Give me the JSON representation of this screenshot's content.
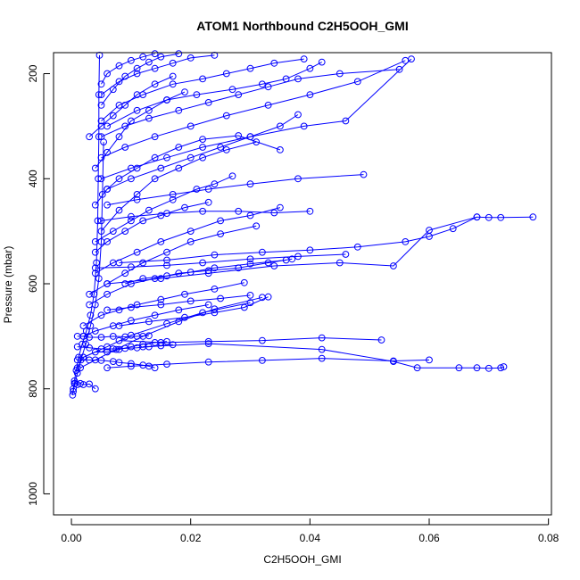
{
  "chart_data": {
    "type": "line",
    "title": "ATOM1 Northbound C2H5OOH_GMI",
    "xlabel": "C2H5OOH_GMI",
    "ylabel": "Pressure (mbar)",
    "xlim": [
      -0.003,
      0.0805
    ],
    "ylim": [
      1040,
      160
    ],
    "y_reversed": true,
    "x_ticks": [
      0.0,
      0.02,
      0.04,
      0.06,
      0.08
    ],
    "x_tick_labels": [
      "0.00",
      "0.02",
      "0.04",
      "0.06",
      "0.08"
    ],
    "y_ticks": [
      200,
      400,
      600,
      800,
      1000
    ],
    "y_tick_labels": [
      "200",
      "400",
      "600",
      "800",
      "1000"
    ],
    "grid": false,
    "legend": "none",
    "marker": "open-circle",
    "series_color": "#0000ff",
    "series": [
      {
        "x": [
          0.0002,
          0.0003,
          0.0005,
          0.0008,
          0.0012,
          0.0018,
          0.0025,
          0.0032,
          0.0038,
          0.0042,
          0.0044,
          0.0045,
          0.0046,
          0.0046,
          0.0047
        ],
        "y": [
          812,
          800,
          785,
          765,
          740,
          715,
          690,
          660,
          620,
          560,
          480,
          400,
          320,
          240,
          165
        ]
      },
      {
        "x": [
          0.0003,
          0.0006,
          0.001,
          0.0016,
          0.0024,
          0.0032,
          0.004,
          0.0046,
          0.005,
          0.0052,
          0.0054
        ],
        "y": [
          805,
          790,
          770,
          745,
          715,
          680,
          640,
          590,
          520,
          430,
          330
        ]
      },
      {
        "x": [
          0.0015,
          0.004,
          0.0075,
          0.012,
          0.018,
          0.024,
          0.032
        ],
        "y": [
          760,
          745,
          725,
          700,
          672,
          648,
          626
        ]
      },
      {
        "x": [
          0.002,
          0.006,
          0.01,
          0.016,
          0.022,
          0.03
        ],
        "y": [
          740,
          720,
          698,
          676,
          655,
          636
        ]
      },
      {
        "x": [
          0.006,
          0.01,
          0.016,
          0.023,
          0.032,
          0.042,
          0.054,
          0.06
        ],
        "y": [
          760,
          757,
          753,
          749,
          746,
          742,
          747,
          745
        ]
      },
      {
        "x": [
          0.012,
          0.023,
          0.042,
          0.054,
          0.058,
          0.065,
          0.068,
          0.07,
          0.072,
          0.0725
        ],
        "y": [
          720,
          714,
          725,
          748,
          760,
          760,
          760,
          761,
          760,
          758
        ]
      },
      {
        "x": [
          0.008,
          0.015,
          0.023,
          0.032,
          0.042,
          0.052
        ],
        "y": [
          708,
          712,
          710,
          708,
          703,
          707
        ]
      },
      {
        "x": [
          0.004,
          0.01,
          0.016,
          0.022,
          0.03,
          0.038,
          0.046
        ],
        "y": [
          570,
          568,
          565,
          560,
          553,
          548,
          544
        ]
      },
      {
        "x": [
          0.006,
          0.015,
          0.023,
          0.034,
          0.045,
          0.054,
          0.06,
          0.068,
          0.07,
          0.072,
          0.0774
        ],
        "y": [
          600,
          590,
          580,
          566,
          560,
          566,
          498,
          473,
          474,
          474,
          473
        ]
      },
      {
        "x": [
          0.008,
          0.016,
          0.024,
          0.032,
          0.04,
          0.048,
          0.056,
          0.06,
          0.064,
          0.068
        ],
        "y": [
          560,
          555,
          545,
          540,
          536,
          530,
          520,
          510,
          495,
          473
        ]
      },
      {
        "x": [
          0.005,
          0.01,
          0.016,
          0.022,
          0.028,
          0.034,
          0.04
        ],
        "y": [
          480,
          472,
          466,
          462,
          462,
          465,
          462
        ]
      },
      {
        "x": [
          0.006,
          0.011,
          0.017,
          0.023,
          0.03,
          0.038,
          0.049
        ],
        "y": [
          450,
          440,
          430,
          420,
          410,
          400,
          392
        ]
      },
      {
        "x": [
          0.005,
          0.01,
          0.016,
          0.022,
          0.03,
          0.039,
          0.046,
          0.057
        ],
        "y": [
          400,
          380,
          360,
          340,
          320,
          300,
          290,
          172
        ]
      },
      {
        "x": [
          0.005,
          0.009,
          0.014,
          0.02,
          0.026,
          0.033,
          0.04,
          0.048,
          0.056
        ],
        "y": [
          360,
          340,
          320,
          300,
          280,
          260,
          240,
          215,
          175
        ]
      },
      {
        "x": [
          0.005,
          0.009,
          0.013,
          0.018,
          0.023,
          0.028,
          0.033,
          0.038,
          0.045,
          0.055
        ],
        "y": [
          320,
          300,
          285,
          270,
          255,
          240,
          225,
          210,
          200,
          192
        ]
      },
      {
        "x": [
          0.006,
          0.011,
          0.016,
          0.021,
          0.027,
          0.032,
          0.036,
          0.04,
          0.042
        ],
        "y": [
          300,
          270,
          250,
          240,
          230,
          220,
          210,
          190,
          178
        ]
      },
      {
        "x": [
          0.005,
          0.008,
          0.012,
          0.017,
          0.022,
          0.026,
          0.03,
          0.034,
          0.039
        ],
        "y": [
          290,
          260,
          240,
          220,
          210,
          200,
          190,
          180,
          172
        ]
      },
      {
        "x": [
          0.006,
          0.01,
          0.015,
          0.02,
          0.025,
          0.03,
          0.035,
          0.038
        ],
        "y": [
          420,
          400,
          380,
          360,
          340,
          320,
          300,
          278
        ]
      },
      {
        "x": [
          0.005,
          0.008,
          0.011,
          0.014,
          0.017,
          0.02,
          0.024
        ],
        "y": [
          240,
          215,
          200,
          190,
          180,
          170,
          165
        ]
      },
      {
        "x": [
          0.005,
          0.007,
          0.009,
          0.011,
          0.013,
          0.015,
          0.018
        ],
        "y": [
          260,
          230,
          205,
          190,
          178,
          168,
          162
        ]
      },
      {
        "x": [
          0.005,
          0.006,
          0.008,
          0.01,
          0.012,
          0.014
        ],
        "y": [
          220,
          200,
          185,
          175,
          168,
          162
        ]
      },
      {
        "x": [
          0.004,
          0.007,
          0.01,
          0.013,
          0.017,
          0.021,
          0.024,
          0.027
        ],
        "y": [
          520,
          500,
          480,
          460,
          440,
          420,
          410,
          395
        ]
      },
      {
        "x": [
          0.004,
          0.007,
          0.011,
          0.015,
          0.02,
          0.025,
          0.03,
          0.035
        ],
        "y": [
          580,
          560,
          540,
          520,
          500,
          480,
          470,
          455
        ]
      },
      {
        "x": [
          0.003,
          0.006,
          0.01,
          0.014,
          0.018,
          0.023,
          0.028,
          0.033,
          0.037
        ],
        "y": [
          640,
          620,
          600,
          590,
          580,
          575,
          570,
          560,
          553
        ]
      },
      {
        "x": [
          0.002,
          0.005,
          0.008,
          0.011,
          0.015,
          0.019,
          0.024,
          0.029
        ],
        "y": [
          680,
          660,
          650,
          640,
          630,
          620,
          610,
          598
        ]
      },
      {
        "x": [
          0.002,
          0.004,
          0.007,
          0.01,
          0.014,
          0.018,
          0.023
        ],
        "y": [
          700,
          690,
          680,
          670,
          660,
          650,
          640
        ]
      },
      {
        "x": [
          0.003,
          0.006,
          0.009,
          0.012,
          0.016,
          0.02,
          0.025,
          0.031
        ],
        "y": [
          620,
          600,
          580,
          560,
          540,
          520,
          505,
          490
        ]
      },
      {
        "x": [
          0.004,
          0.006,
          0.009,
          0.012,
          0.015,
          0.019,
          0.023
        ],
        "y": [
          540,
          520,
          500,
          480,
          470,
          455,
          445
        ]
      },
      {
        "x": [
          0.005,
          0.008,
          0.011,
          0.014,
          0.018,
          0.022,
          0.026,
          0.031
        ],
        "y": [
          500,
          460,
          430,
          400,
          380,
          360,
          345,
          330
        ]
      },
      {
        "x": [
          0.004,
          0.006,
          0.008,
          0.011,
          0.014,
          0.018,
          0.022,
          0.028,
          0.035
        ],
        "y": [
          450,
          420,
          400,
          380,
          360,
          340,
          325,
          318,
          345
        ]
      },
      {
        "x": [
          0.001,
          0.002,
          0.004,
          0.006,
          0.008,
          0.01,
          0.012,
          0.014,
          0.016
        ],
        "y": [
          760,
          740,
          730,
          730,
          725,
          720,
          715,
          712,
          710
        ]
      },
      {
        "x": [
          0.001,
          0.002,
          0.003,
          0.005,
          0.007,
          0.009,
          0.011,
          0.013
        ],
        "y": [
          700,
          700,
          702,
          702,
          700,
          701,
          700,
          699
        ]
      },
      {
        "x": [
          0.001,
          0.003,
          0.005,
          0.007,
          0.009,
          0.011,
          0.013,
          0.015,
          0.017
        ],
        "y": [
          720,
          722,
          724,
          724,
          723,
          722,
          720,
          718,
          716
        ]
      },
      {
        "x": [
          0.001,
          0.003,
          0.005,
          0.007,
          0.008,
          0.01,
          0.012,
          0.013,
          0.014
        ],
        "y": [
          745,
          745,
          746,
          748,
          750,
          752,
          755,
          757,
          760
        ]
      },
      {
        "x": [
          0.0005,
          0.001,
          0.0015,
          0.002,
          0.003,
          0.004
        ],
        "y": [
          790,
          792,
          790,
          792,
          791,
          800
        ]
      },
      {
        "x": [
          0.006,
          0.01,
          0.015,
          0.02,
          0.025,
          0.03
        ],
        "y": [
          650,
          645,
          640,
          633,
          628,
          622
        ]
      },
      {
        "x": [
          0.008,
          0.013,
          0.019,
          0.024,
          0.029,
          0.033
        ],
        "y": [
          680,
          672,
          664,
          655,
          645,
          625
        ]
      },
      {
        "x": [
          0.009,
          0.012,
          0.016,
          0.02,
          0.024,
          0.03,
          0.036
        ],
        "y": [
          600,
          590,
          585,
          578,
          570,
          562,
          555
        ]
      },
      {
        "x": [
          0.003,
          0.005,
          0.007,
          0.009,
          0.011,
          0.014,
          0.017
        ],
        "y": [
          320,
          300,
          280,
          260,
          240,
          220,
          205
        ]
      },
      {
        "x": [
          0.004,
          0.006,
          0.008,
          0.01,
          0.013,
          0.016,
          0.019
        ],
        "y": [
          380,
          350,
          320,
          290,
          270,
          250,
          235
        ]
      }
    ]
  }
}
